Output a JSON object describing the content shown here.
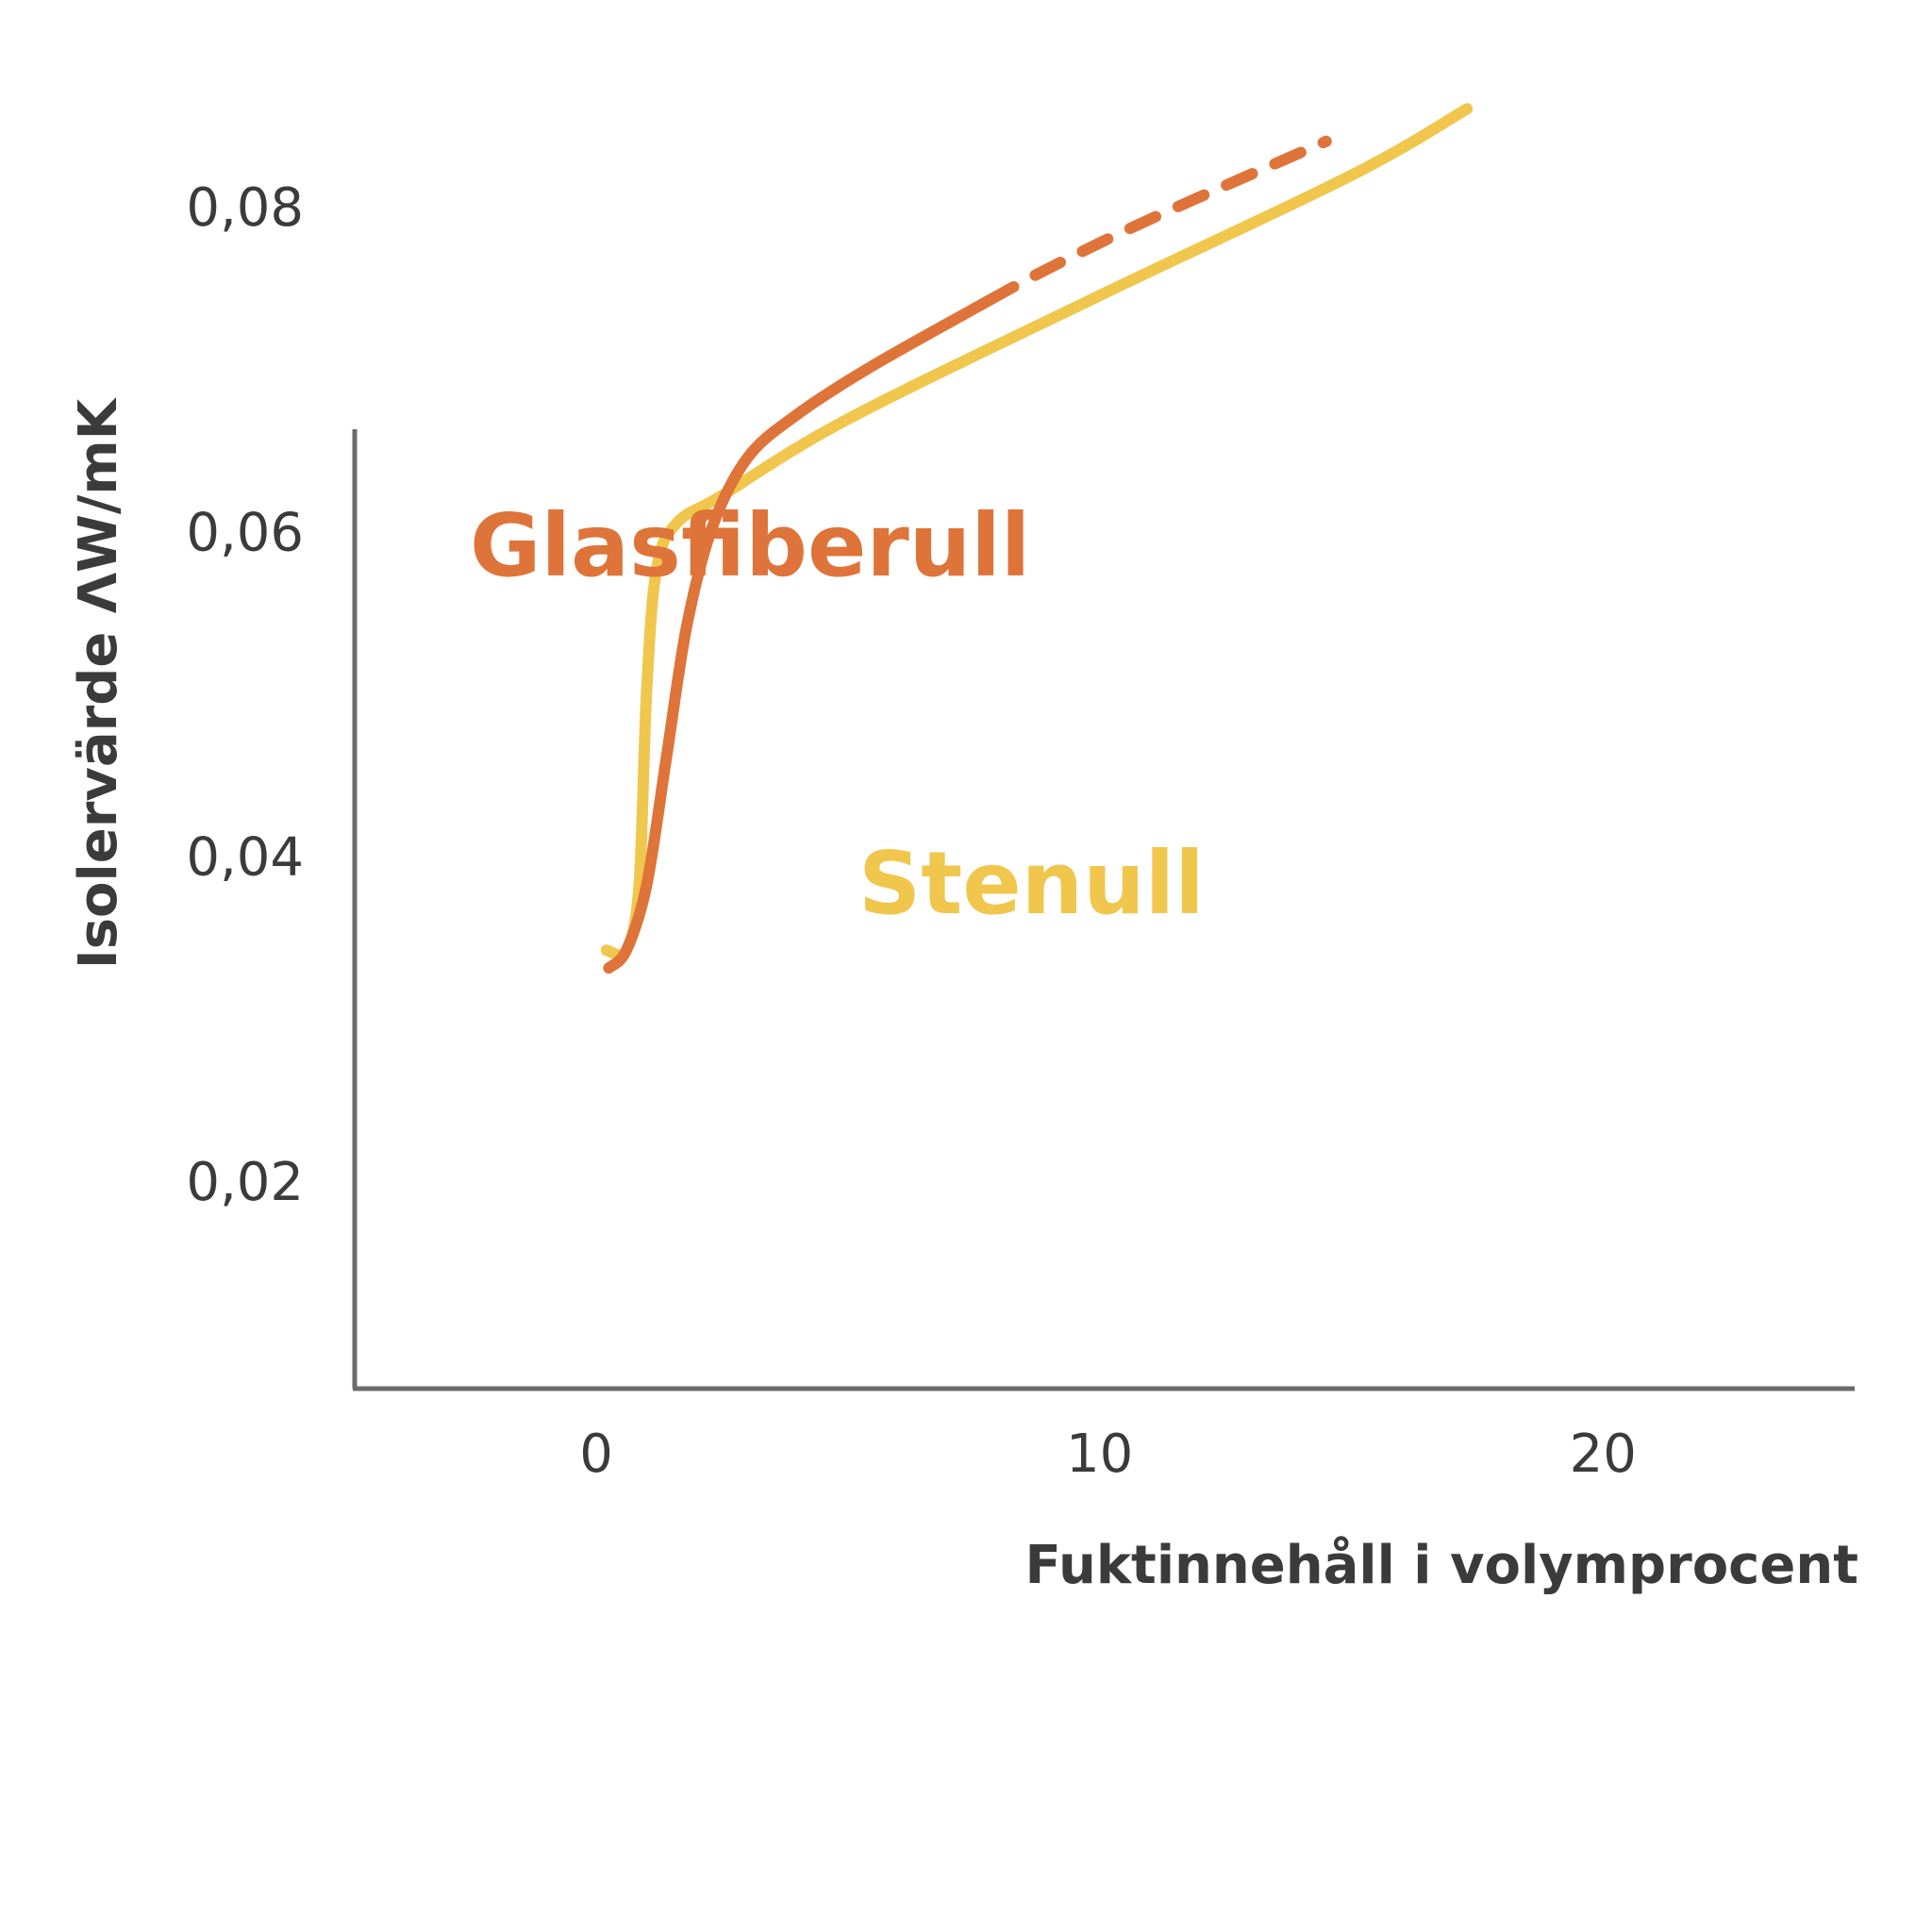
{
  "chart_data": {
    "type": "line",
    "xlabel": "Fuktinnehåll i volymprocent",
    "ylabel": "Isolervärde ΛW/mK",
    "x_ticks": [
      "0",
      "10",
      "20"
    ],
    "y_ticks": [
      "0,02",
      "0,04",
      "0,06",
      "0,08"
    ],
    "xlim": [
      -4.8,
      25
    ],
    "ylim": [
      0.0075,
      0.093
    ],
    "grid": false,
    "legend": "inline labels",
    "series": [
      {
        "name": "Glasfiberull",
        "color": "#de7439",
        "line_style": "solid then dashed",
        "dashed_from_x": 7.8,
        "points": [
          [
            0.25,
            0.0334
          ],
          [
            0.6,
            0.0345
          ],
          [
            1.0,
            0.0385
          ],
          [
            1.4,
            0.0465
          ],
          [
            1.8,
            0.0545
          ],
          [
            2.3,
            0.0605
          ],
          [
            3.0,
            0.0648
          ],
          [
            4.0,
            0.0675
          ],
          [
            5.5,
            0.0705
          ],
          [
            7.8,
            0.0745
          ],
          [
            9.0,
            0.0765
          ],
          [
            11.0,
            0.0795
          ],
          [
            14.5,
            0.0843
          ]
        ]
      },
      {
        "name": "Stenull",
        "color": "#f0c64d",
        "line_style": "solid",
        "points": [
          [
            0.2,
            0.0345
          ],
          [
            0.6,
            0.0345
          ],
          [
            0.85,
            0.0385
          ],
          [
            1.0,
            0.0505
          ],
          [
            1.2,
            0.058
          ],
          [
            1.6,
            0.0608
          ],
          [
            2.5,
            0.0625
          ],
          [
            5.0,
            0.0672
          ],
          [
            10.0,
            0.0748
          ],
          [
            15.0,
            0.0822
          ],
          [
            17.3,
            0.0863
          ]
        ]
      }
    ]
  }
}
